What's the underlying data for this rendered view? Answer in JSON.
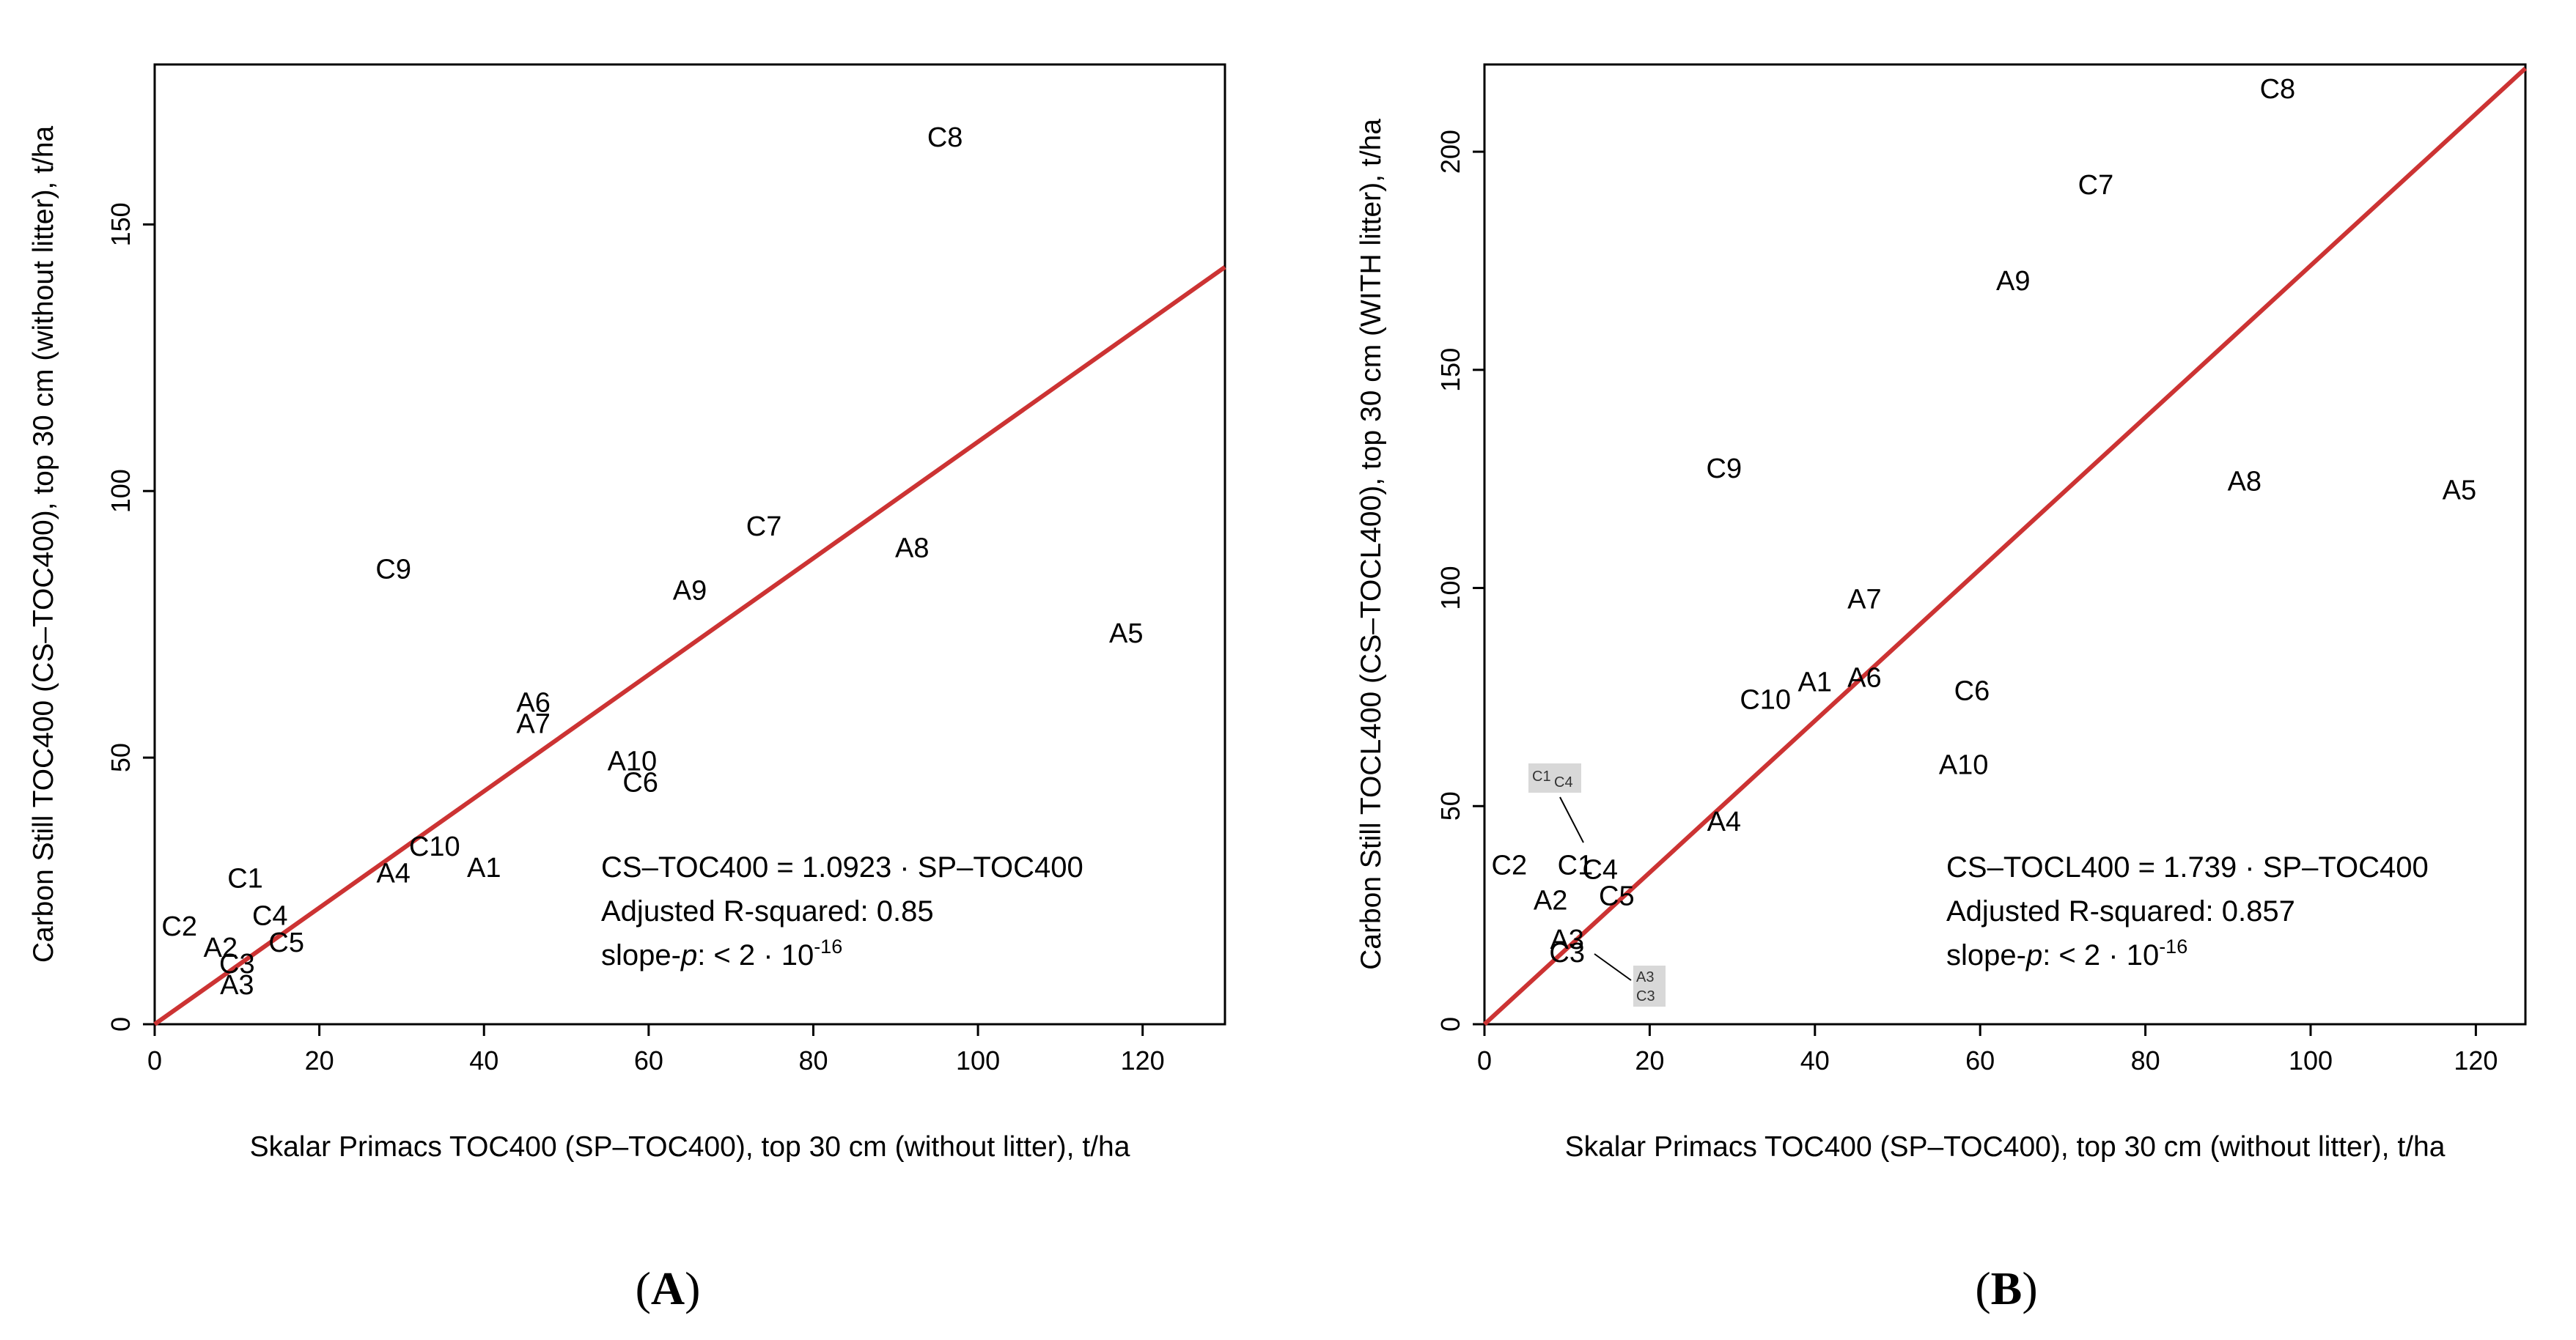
{
  "panels": [
    {
      "panel_label": "A",
      "annotation": {
        "equation": "CS–TOC400 = 1.0923 · SP–TOC400",
        "r_squared": "Adjusted R-squared: 0.85",
        "slope_prefix": "slope-",
        "slope_p": "p",
        "slope_text": ": < 2 · 10",
        "slope_exp": "-16"
      }
    },
    {
      "panel_label": "B",
      "annotation": {
        "equation": "CS–TOCL400 = 1.739 · SP–TOC400",
        "r_squared": "Adjusted R-squared: 0.857",
        "slope_prefix": "slope-",
        "slope_p": "p",
        "slope_text": ": < 2 · 10",
        "slope_exp": "-16"
      },
      "insets": [
        {
          "labels": [
            "C1",
            "C4"
          ]
        },
        {
          "labels": [
            "A3",
            "C3"
          ]
        }
      ]
    }
  ],
  "chart_data": [
    {
      "type": "scatter",
      "title": "",
      "xlabel": "Skalar Primacs TOC400 (SP–TOC400), top 30 cm (without litter), t/ha",
      "ylabel": "Carbon Still TOC400 (CS–TOC400), top 30 cm (without litter), t/ha",
      "xlim": [
        0,
        130
      ],
      "ylim": [
        0,
        180
      ],
      "xticks": [
        0,
        20,
        40,
        60,
        80,
        100,
        120
      ],
      "yticks": [
        0,
        50,
        100,
        150
      ],
      "regression_slope": 1.0923,
      "regression_color": "#cc3333",
      "points": [
        {
          "label": "C8",
          "x": 96,
          "y": 166
        },
        {
          "label": "C7",
          "x": 74,
          "y": 93
        },
        {
          "label": "A8",
          "x": 92,
          "y": 89
        },
        {
          "label": "C9",
          "x": 29,
          "y": 85
        },
        {
          "label": "A9",
          "x": 65,
          "y": 81
        },
        {
          "label": "A5",
          "x": 118,
          "y": 73
        },
        {
          "label": "A6",
          "x": 46,
          "y": 60
        },
        {
          "label": "A7",
          "x": 46,
          "y": 56
        },
        {
          "label": "A10",
          "x": 58,
          "y": 49
        },
        {
          "label": "C6",
          "x": 59,
          "y": 45
        },
        {
          "label": "C10",
          "x": 34,
          "y": 33
        },
        {
          "label": "A4",
          "x": 29,
          "y": 28
        },
        {
          "label": "A1",
          "x": 40,
          "y": 29
        },
        {
          "label": "C1",
          "x": 11,
          "y": 27
        },
        {
          "label": "C2",
          "x": 3,
          "y": 18
        },
        {
          "label": "C4",
          "x": 14,
          "y": 20
        },
        {
          "label": "A2",
          "x": 8,
          "y": 14
        },
        {
          "label": "C5",
          "x": 16,
          "y": 15
        },
        {
          "label": "C3",
          "x": 10,
          "y": 11
        },
        {
          "label": "A3",
          "x": 10,
          "y": 7
        }
      ]
    },
    {
      "type": "scatter",
      "title": "",
      "xlabel": "Skalar Primacs TOC400 (SP–TOC400), top 30 cm (without litter), t/ha",
      "ylabel": "Carbon Still TOCL400 (CS–TOCL400), top 30 cm (WITH litter), t/ha",
      "xlim": [
        0,
        126
      ],
      "ylim": [
        0,
        220
      ],
      "xticks": [
        0,
        20,
        40,
        60,
        80,
        100,
        120
      ],
      "yticks": [
        0,
        50,
        100,
        150,
        200
      ],
      "regression_slope": 1.739,
      "regression_color": "#cc3333",
      "points": [
        {
          "label": "C8",
          "x": 96,
          "y": 214
        },
        {
          "label": "C7",
          "x": 74,
          "y": 192
        },
        {
          "label": "A9",
          "x": 64,
          "y": 170
        },
        {
          "label": "C9",
          "x": 29,
          "y": 127
        },
        {
          "label": "A8",
          "x": 92,
          "y": 124
        },
        {
          "label": "A5",
          "x": 118,
          "y": 122
        },
        {
          "label": "A7",
          "x": 46,
          "y": 97
        },
        {
          "label": "A1",
          "x": 40,
          "y": 78
        },
        {
          "label": "A6",
          "x": 46,
          "y": 79
        },
        {
          "label": "C10",
          "x": 34,
          "y": 74
        },
        {
          "label": "C6",
          "x": 59,
          "y": 76
        },
        {
          "label": "A10",
          "x": 58,
          "y": 59
        },
        {
          "label": "A4",
          "x": 29,
          "y": 46
        },
        {
          "label": "C2",
          "x": 3,
          "y": 36
        },
        {
          "label": "C1",
          "x": 11,
          "y": 36
        },
        {
          "label": "C4",
          "x": 14,
          "y": 35
        },
        {
          "label": "A2",
          "x": 8,
          "y": 28
        },
        {
          "label": "C5",
          "x": 16,
          "y": 29
        },
        {
          "label": "A3",
          "x": 10,
          "y": 19
        },
        {
          "label": "C3",
          "x": 10,
          "y": 16
        }
      ]
    }
  ]
}
